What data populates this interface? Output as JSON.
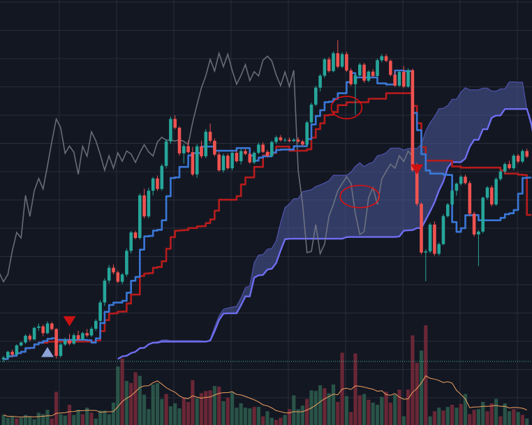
{
  "theme": {
    "background": "#131722",
    "grid": "#2a2e39",
    "up_candle": "#26a69a",
    "down_candle": "#ef5350",
    "tenkan_line": "#3a78d8",
    "kijun_line": "#b71c1c",
    "chikou_line": "#787b86",
    "cloud_fill": "#4a5a9a",
    "cloud_edge": "#6f6ef0",
    "volume_up": "#2e5e4e",
    "volume_down": "#7a2a3a",
    "volume_ma": "#f0a060",
    "marker": "#cc1111",
    "annotation": "#e01010",
    "buy_marker": "#8ea2d8",
    "price_level": "#3cc0a0"
  },
  "chart_data": {
    "type": "line",
    "ylim": [
      0,
      100
    ],
    "grid": true,
    "candles": [
      [
        1.2,
        2.4,
        0.3,
        1.8
      ],
      [
        1.8,
        4.2,
        1.4,
        3.8
      ],
      [
        3.8,
        4.6,
        2.2,
        2.8
      ],
      [
        2.8,
        6.4,
        2.6,
        6.0
      ],
      [
        6.0,
        7.3,
        5.6,
        7.0
      ],
      [
        7.0,
        9.8,
        6.5,
        9.3
      ],
      [
        9.3,
        10.0,
        7.3,
        8.0
      ],
      [
        8.0,
        12.4,
        7.8,
        12.0
      ],
      [
        12.0,
        13.5,
        11.0,
        12.5
      ],
      [
        12.5,
        13.2,
        9.2,
        10.2
      ],
      [
        10.2,
        14.3,
        9.8,
        13.5
      ],
      [
        13.5,
        14.0,
        11.1,
        11.6
      ],
      [
        11.6,
        11.9,
        1.5,
        2.4
      ],
      [
        2.4,
        6.9,
        1.8,
        6.3
      ],
      [
        6.3,
        8.7,
        5.8,
        7.7
      ],
      [
        7.7,
        9.9,
        6.0,
        6.6
      ],
      [
        6.6,
        10.1,
        6.2,
        9.5
      ],
      [
        9.5,
        11.0,
        7.6,
        8.1
      ],
      [
        8.1,
        10.7,
        7.6,
        10.2
      ],
      [
        10.2,
        11.6,
        8.8,
        9.4
      ],
      [
        9.4,
        12.4,
        8.9,
        11.7
      ],
      [
        11.7,
        15.0,
        11.0,
        14.4
      ],
      [
        14.4,
        21.5,
        13.6,
        20.7
      ],
      [
        20.7,
        29.0,
        19.5,
        28.2
      ],
      [
        28.2,
        33.5,
        27.2,
        32.6
      ],
      [
        32.6,
        33.7,
        30.3,
        31.0
      ],
      [
        31.0,
        31.6,
        27.4,
        27.8
      ],
      [
        27.8,
        30.8,
        27.0,
        30.3
      ],
      [
        30.3,
        39.2,
        29.5,
        38.4
      ],
      [
        38.4,
        45.3,
        37.5,
        44.7
      ],
      [
        44.7,
        45.3,
        42.4,
        42.8
      ],
      [
        42.8,
        58.1,
        42.3,
        57.4
      ],
      [
        57.4,
        59.7,
        49.5,
        50.2
      ],
      [
        50.2,
        60.0,
        49.5,
        59.0
      ],
      [
        59.0,
        63.7,
        57.4,
        63.2
      ],
      [
        63.2,
        64.2,
        58.9,
        59.6
      ],
      [
        59.6,
        68.2,
        59.0,
        67.5
      ],
      [
        67.5,
        76.7,
        66.6,
        75.9
      ],
      [
        75.9,
        84.4,
        75.0,
        83.6
      ],
      [
        83.6,
        84.8,
        80.0,
        80.6
      ],
      [
        80.6,
        81.1,
        71.0,
        71.8
      ],
      [
        71.8,
        75.0,
        68.3,
        74.3
      ],
      [
        74.3,
        76.2,
        71.7,
        72.2
      ],
      [
        72.2,
        74.0,
        64.0,
        64.6
      ],
      [
        64.6,
        75.0,
        63.4,
        74.2
      ],
      [
        74.2,
        76.1,
        70.1,
        70.8
      ],
      [
        70.8,
        80.1,
        70.1,
        79.2
      ],
      [
        79.2,
        82.0,
        75.4,
        76.1
      ],
      [
        76.1,
        76.9,
        70.8,
        71.4
      ],
      [
        71.4,
        72.3,
        65.5,
        66.0
      ],
      [
        66.0,
        71.7,
        65.2,
        71.0
      ],
      [
        71.0,
        71.7,
        66.2,
        66.7
      ],
      [
        66.7,
        72.6,
        66.0,
        72.0
      ],
      [
        72.0,
        72.8,
        68.6,
        69.1
      ],
      [
        69.1,
        73.4,
        68.0,
        72.6
      ],
      [
        72.6,
        73.4,
        71.2,
        71.6
      ],
      [
        71.6,
        72.2,
        68.2,
        68.7
      ],
      [
        68.7,
        72.5,
        68.1,
        72.0
      ],
      [
        72.0,
        75.5,
        71.5,
        74.8
      ],
      [
        74.8,
        75.6,
        71.9,
        72.3
      ],
      [
        72.3,
        73.0,
        70.4,
        70.9
      ],
      [
        70.9,
        76.2,
        70.4,
        75.7
      ],
      [
        75.7,
        77.9,
        75.0,
        77.3
      ],
      [
        77.3,
        78.1,
        75.8,
        76.3
      ],
      [
        76.3,
        77.1,
        75.7,
        76.4
      ],
      [
        76.4,
        77.2,
        75.6,
        76.0
      ],
      [
        76.0,
        77.0,
        75.6,
        76.5
      ],
      [
        76.5,
        77.3,
        75.4,
        75.9
      ],
      [
        75.9,
        76.4,
        74.3,
        74.8
      ],
      [
        74.8,
        83.0,
        74.2,
        82.4
      ],
      [
        82.4,
        89.2,
        81.8,
        88.5
      ],
      [
        88.5,
        95.0,
        88.0,
        94.3
      ],
      [
        94.3,
        99.0,
        93.0,
        98.4
      ],
      [
        98.4,
        104.5,
        97.7,
        104.0
      ],
      [
        104.0,
        104.8,
        99.5,
        100.0
      ],
      [
        100.0,
        106.7,
        99.6,
        106.1
      ],
      [
        106.1,
        110.6,
        100.9,
        101.5
      ],
      [
        101.5,
        106.5,
        101.0,
        105.8
      ],
      [
        105.8,
        106.6,
        99.7,
        100.2
      ],
      [
        100.2,
        100.9,
        94.9,
        95.5
      ],
      [
        95.5,
        99.1,
        85.0,
        98.5
      ],
      [
        98.5,
        102.8,
        97.8,
        102.2
      ],
      [
        102.2,
        102.8,
        96.0,
        96.7
      ],
      [
        96.7,
        100.3,
        96.2,
        99.8
      ],
      [
        99.8,
        100.7,
        97.8,
        98.3
      ],
      [
        98.3,
        104.3,
        97.6,
        103.7
      ],
      [
        103.7,
        105.8,
        103.0,
        105.1
      ],
      [
        105.1,
        105.8,
        103.0,
        103.5
      ],
      [
        103.5,
        103.9,
        98.2,
        98.7
      ],
      [
        98.7,
        100.0,
        94.6,
        95.0
      ],
      [
        95.0,
        100.2,
        94.6,
        99.7
      ],
      [
        99.7,
        101.7,
        94.2,
        94.7
      ],
      [
        94.7,
        101.0,
        94.2,
        100.3
      ],
      [
        100.3,
        100.8,
        65.5,
        66.0
      ],
      [
        66.0,
        68.5,
        53.7,
        54.5
      ],
      [
        54.5,
        55.0,
        37.2,
        37.8
      ],
      [
        37.8,
        39.0,
        28.0,
        38.2
      ],
      [
        38.2,
        48.0,
        37.5,
        47.4
      ],
      [
        47.4,
        48.5,
        36.7,
        37.4
      ],
      [
        37.4,
        41.3,
        36.8,
        40.7
      ],
      [
        40.7,
        51.0,
        40.3,
        50.3
      ],
      [
        50.3,
        54.8,
        49.8,
        54.3
      ],
      [
        54.3,
        59.5,
        53.3,
        59.0
      ],
      [
        59.0,
        61.8,
        57.3,
        61.4
      ],
      [
        61.4,
        64.3,
        60.8,
        63.8
      ],
      [
        63.8,
        64.5,
        61.1,
        61.6
      ],
      [
        61.6,
        62.4,
        50.5,
        51.1
      ],
      [
        51.1,
        51.8,
        43.3,
        44.0
      ],
      [
        44.0,
        45.5,
        33.2,
        45.0
      ],
      [
        45.0,
        57.0,
        44.4,
        56.6
      ],
      [
        56.6,
        60.6,
        56.0,
        60.1
      ],
      [
        60.1,
        60.8,
        53.6,
        54.3
      ],
      [
        54.3,
        63.6,
        53.8,
        63.0
      ],
      [
        63.0,
        66.2,
        62.4,
        65.6
      ],
      [
        65.6,
        68.7,
        64.9,
        68.1
      ],
      [
        68.1,
        69.3,
        66.2,
        66.7
      ],
      [
        66.7,
        71.6,
        66.0,
        71.0
      ],
      [
        71.0,
        71.6,
        68.3,
        69.0
      ],
      [
        69.0,
        73.2,
        68.4,
        72.6
      ],
      [
        72.6,
        73.4,
        70.2,
        70.7
      ]
    ],
    "volume": [
      [
        14,
        1
      ],
      [
        10,
        1
      ],
      [
        12,
        1
      ],
      [
        9,
        0
      ],
      [
        10,
        1
      ],
      [
        14,
        1
      ],
      [
        12,
        1
      ],
      [
        8,
        1
      ],
      [
        17,
        1
      ],
      [
        15,
        1
      ],
      [
        21,
        1
      ],
      [
        9,
        0
      ],
      [
        46,
        0
      ],
      [
        15,
        1
      ],
      [
        13,
        1
      ],
      [
        28,
        0
      ],
      [
        14,
        1
      ],
      [
        21,
        1
      ],
      [
        15,
        0
      ],
      [
        24,
        1
      ],
      [
        17,
        0
      ],
      [
        9,
        1
      ],
      [
        20,
        1
      ],
      [
        20,
        1
      ],
      [
        15,
        1
      ],
      [
        31,
        1
      ],
      [
        81,
        1
      ],
      [
        92,
        0
      ],
      [
        61,
        1
      ],
      [
        58,
        0
      ],
      [
        73,
        0
      ],
      [
        68,
        1
      ],
      [
        42,
        1
      ],
      [
        22,
        1
      ],
      [
        56,
        1
      ],
      [
        58,
        1
      ],
      [
        36,
        1
      ],
      [
        43,
        0
      ],
      [
        26,
        1
      ],
      [
        30,
        1
      ],
      [
        23,
        1
      ],
      [
        38,
        0
      ],
      [
        32,
        0
      ],
      [
        62,
        0
      ],
      [
        37,
        1
      ],
      [
        44,
        0
      ],
      [
        47,
        0
      ],
      [
        48,
        0
      ],
      [
        54,
        1
      ],
      [
        53,
        0
      ],
      [
        33,
        1
      ],
      [
        38,
        0
      ],
      [
        45,
        1
      ],
      [
        24,
        1
      ],
      [
        30,
        1
      ],
      [
        24,
        1
      ],
      [
        23,
        1
      ],
      [
        25,
        0
      ],
      [
        25,
        1
      ],
      [
        12,
        0
      ],
      [
        19,
        1
      ],
      [
        10,
        1
      ],
      [
        7,
        0
      ],
      [
        10,
        0
      ],
      [
        14,
        1
      ],
      [
        22,
        0
      ],
      [
        41,
        1
      ],
      [
        22,
        1
      ],
      [
        27,
        1
      ],
      [
        36,
        0
      ],
      [
        48,
        1
      ],
      [
        47,
        1
      ],
      [
        55,
        1
      ],
      [
        51,
        0
      ],
      [
        44,
        1
      ],
      [
        56,
        1
      ],
      [
        32,
        0
      ],
      [
        100,
        0
      ],
      [
        40,
        1
      ],
      [
        18,
        0
      ],
      [
        99,
        0
      ],
      [
        41,
        0
      ],
      [
        43,
        1
      ],
      [
        35,
        0
      ],
      [
        31,
        1
      ],
      [
        28,
        1
      ],
      [
        39,
        1
      ],
      [
        46,
        0
      ],
      [
        31,
        0
      ],
      [
        42,
        1
      ],
      [
        49,
        0
      ],
      [
        12,
        1
      ],
      [
        49,
        0
      ],
      [
        124,
        0
      ],
      [
        86,
        0
      ],
      [
        103,
        1
      ],
      [
        138,
        0
      ],
      [
        12,
        1
      ],
      [
        19,
        0
      ],
      [
        24,
        1
      ],
      [
        20,
        0
      ],
      [
        25,
        1
      ],
      [
        28,
        0
      ],
      [
        24,
        1
      ],
      [
        29,
        0
      ],
      [
        43,
        1
      ],
      [
        15,
        0
      ],
      [
        21,
        0
      ],
      [
        22,
        1
      ],
      [
        32,
        1
      ],
      [
        19,
        0
      ],
      [
        30,
        0
      ],
      [
        36,
        1
      ],
      [
        12,
        0
      ],
      [
        30,
        1
      ],
      [
        19,
        1
      ],
      [
        22,
        0
      ],
      [
        18,
        1
      ],
      [
        14,
        0
      ],
      [
        9,
        1
      ]
    ],
    "series": []
  }
}
